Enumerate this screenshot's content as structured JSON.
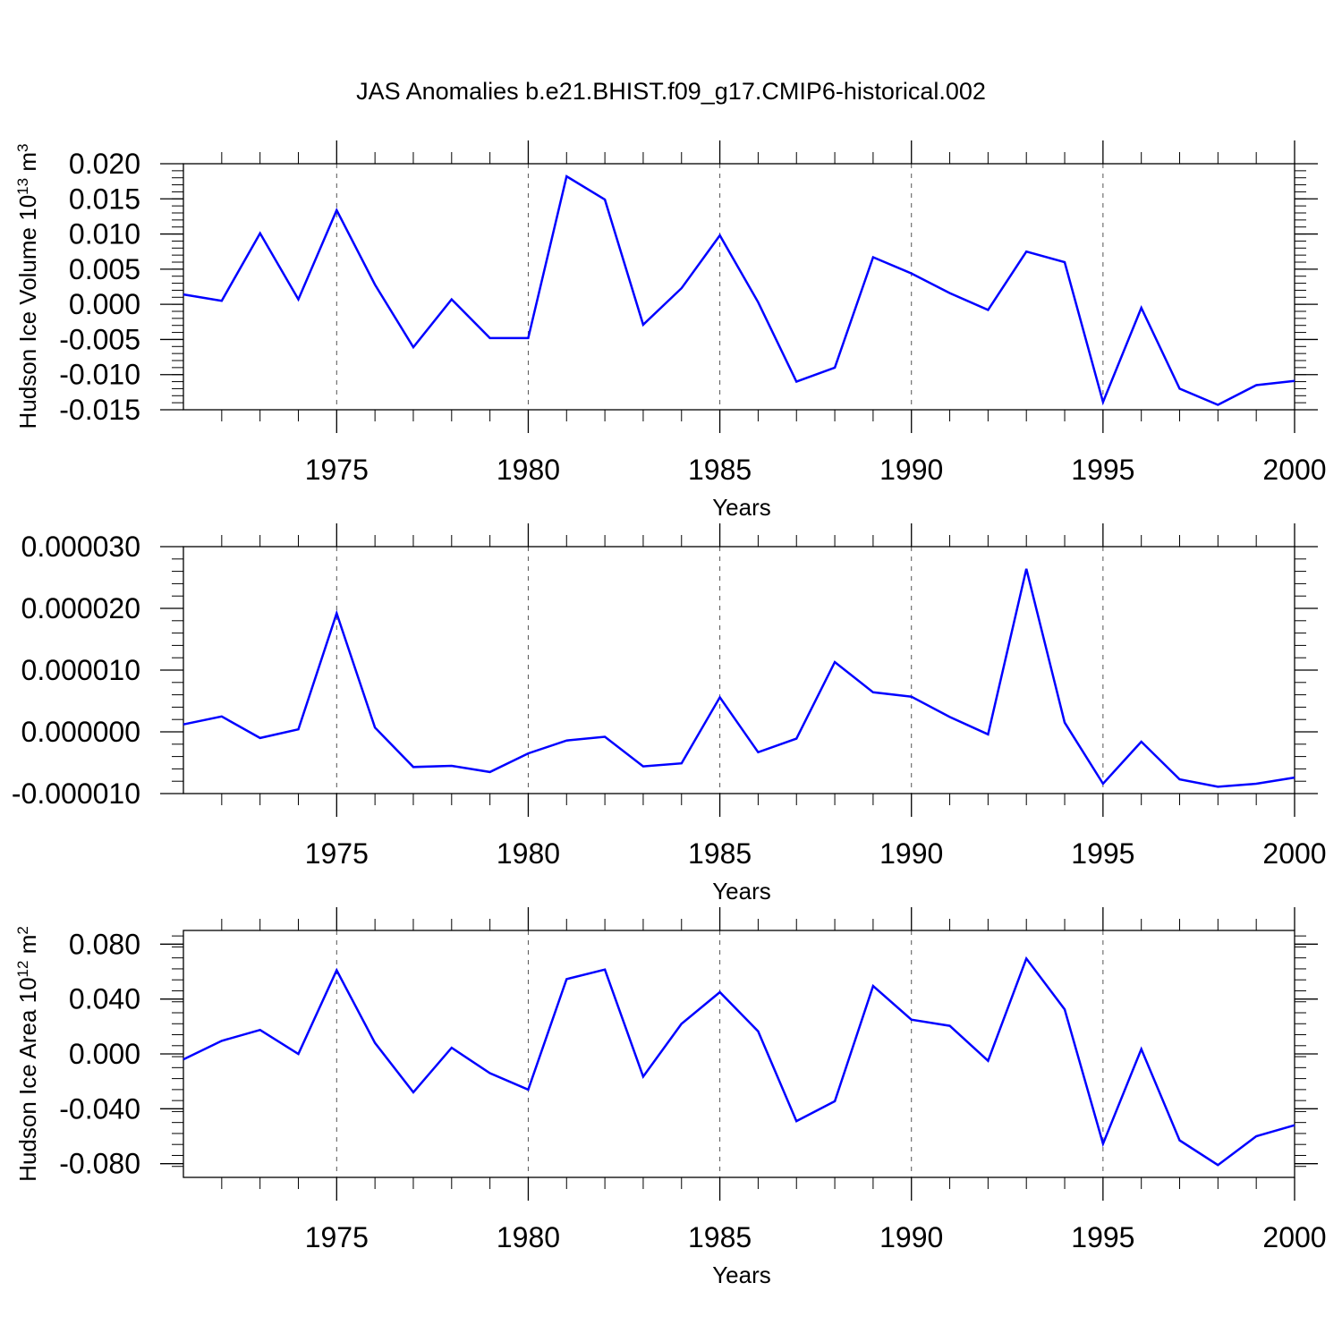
{
  "title": "JAS Anomalies b.e21.BHIST.f09_g17.CMIP6-historical.002",
  "colors": {
    "line": "#0000ff",
    "axis": "#000000",
    "grid": "#555555"
  },
  "chart_data": [
    {
      "type": "line",
      "xlabel": "Years",
      "ylabel": "Hudson Ice Volume 10",
      "ylabel_exp": "13",
      "ylabel_unit": " m",
      "ylabel_unit_exp": "3",
      "xlim": [
        1971,
        2000
      ],
      "ylim": [
        -0.015,
        0.02
      ],
      "x_ticks": [
        1975,
        1980,
        1985,
        1990,
        1995,
        2000
      ],
      "x_tick_labels": [
        "1975",
        "1980",
        "1985",
        "1990",
        "1995",
        "2000"
      ],
      "y_ticks": [
        -0.015,
        -0.01,
        -0.005,
        0.0,
        0.005,
        0.01,
        0.015,
        0.02
      ],
      "y_tick_labels": [
        "-0.015",
        "-0.010",
        "-0.005",
        "0.000",
        "0.005",
        "0.010",
        "0.015",
        "0.020"
      ],
      "grid": "vertical dashed at major x ticks",
      "x": [
        1971,
        1972,
        1973,
        1974,
        1975,
        1976,
        1977,
        1978,
        1979,
        1980,
        1981,
        1982,
        1983,
        1984,
        1985,
        1986,
        1987,
        1988,
        1989,
        1990,
        1991,
        1992,
        1993,
        1994,
        1995,
        1996,
        1997,
        1998,
        1999,
        2000
      ],
      "series": [
        {
          "values": [
            0.0014,
            0.0005,
            0.0101,
            0.0007,
            0.0134,
            0.0028,
            -0.0061,
            0.0007,
            -0.0048,
            -0.0048,
            0.0182,
            0.0149,
            -0.0029,
            0.0023,
            0.0098,
            0.0003,
            -0.011,
            -0.009,
            0.0067,
            0.0044,
            0.0016,
            -0.0008,
            0.0075,
            0.006,
            -0.0139,
            -0.0005,
            -0.012,
            -0.0143,
            -0.0115,
            -0.0109
          ]
        }
      ]
    },
    {
      "type": "line",
      "xlabel": "Years",
      "ylabel": "",
      "xlim": [
        1971,
        2000
      ],
      "ylim": [
        -1e-05,
        3e-05
      ],
      "x_ticks": [
        1975,
        1980,
        1985,
        1990,
        1995,
        2000
      ],
      "x_tick_labels": [
        "1975",
        "1980",
        "1985",
        "1990",
        "1995",
        "2000"
      ],
      "y_ticks": [
        -1e-05,
        0.0,
        1e-05,
        2e-05,
        3e-05
      ],
      "y_tick_labels": [
        "-0.000010",
        "0.000000",
        "0.000010",
        "0.000020",
        "0.000030"
      ],
      "grid": "vertical dashed at major x ticks",
      "x": [
        1971,
        1972,
        1973,
        1974,
        1975,
        1976,
        1977,
        1978,
        1979,
        1980,
        1981,
        1982,
        1983,
        1984,
        1985,
        1986,
        1987,
        1988,
        1989,
        1990,
        1991,
        1992,
        1993,
        1994,
        1995,
        1996,
        1997,
        1998,
        1999,
        2000
      ],
      "series": [
        {
          "values": [
            1.2e-06,
            2.5e-06,
            -1e-06,
            4e-07,
            1.92e-05,
            7e-07,
            -5.7e-06,
            -5.5e-06,
            -6.5e-06,
            -3.5e-06,
            -1.4e-06,
            -8e-07,
            -5.6e-06,
            -5.1e-06,
            5.6e-06,
            -3.3e-06,
            -1.1e-06,
            1.13e-05,
            6.4e-06,
            5.7e-06,
            2.4e-06,
            -4e-07,
            2.64e-05,
            1.5e-06,
            -8.4e-06,
            -1.6e-06,
            -7.7e-06,
            -8.9e-06,
            -8.4e-06,
            -7.4e-06
          ]
        }
      ]
    },
    {
      "type": "line",
      "xlabel": "Years",
      "ylabel": "Hudson Ice Area 10",
      "ylabel_exp": "12",
      "ylabel_unit": " m",
      "ylabel_unit_exp": "2",
      "xlim": [
        1971,
        2000
      ],
      "ylim": [
        -0.09,
        0.09
      ],
      "x_ticks": [
        1975,
        1980,
        1985,
        1990,
        1995,
        2000
      ],
      "x_tick_labels": [
        "1975",
        "1980",
        "1985",
        "1990",
        "1995",
        "2000"
      ],
      "y_ticks": [
        -0.08,
        -0.04,
        0.0,
        0.04,
        0.08
      ],
      "y_tick_labels": [
        "-0.080",
        "-0.040",
        "0.000",
        "0.040",
        "0.080"
      ],
      "grid": "vertical dashed at major x ticks",
      "x": [
        1971,
        1972,
        1973,
        1974,
        1975,
        1976,
        1977,
        1978,
        1979,
        1980,
        1981,
        1982,
        1983,
        1984,
        1985,
        1986,
        1987,
        1988,
        1989,
        1990,
        1991,
        1992,
        1993,
        1994,
        1995,
        1996,
        1997,
        1998,
        1999,
        2000
      ],
      "series": [
        {
          "values": [
            -0.004,
            0.0095,
            0.0175,
            0.0,
            0.061,
            0.008,
            -0.028,
            0.0045,
            -0.014,
            -0.026,
            0.0545,
            0.0615,
            -0.0165,
            0.022,
            0.045,
            0.0165,
            -0.049,
            -0.0345,
            0.0495,
            0.025,
            0.0205,
            -0.005,
            0.0695,
            0.0325,
            -0.0655,
            0.0035,
            -0.063,
            -0.081,
            -0.06,
            -0.052
          ]
        }
      ]
    }
  ]
}
